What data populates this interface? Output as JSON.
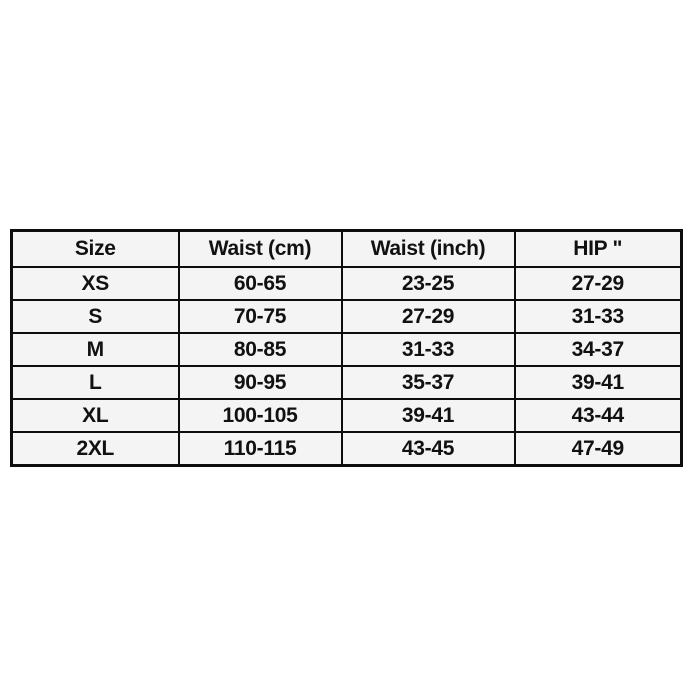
{
  "page": {
    "background": "#ffffff"
  },
  "size_chart": {
    "columns": [
      "Size",
      "Waist (cm)",
      "Waist (inch)",
      "HIP \""
    ],
    "rows": [
      [
        "XS",
        "60-65",
        "23-25",
        "27-29"
      ],
      [
        "S",
        "70-75",
        "27-29",
        "31-33"
      ],
      [
        "M",
        "80-85",
        "31-33",
        "34-37"
      ],
      [
        "L",
        "90-95",
        "35-37",
        "39-41"
      ],
      [
        "XL",
        "100-105",
        "39-41",
        "43-44"
      ],
      [
        "2XL",
        "110-115",
        "43-45",
        "47-49"
      ]
    ],
    "colors": {
      "border": "#0d0d0d",
      "cell_background": "#f4f4f4",
      "text": "#111111",
      "page_background": "#ffffff"
    }
  },
  "chart_data": {
    "type": "table",
    "title": "",
    "columns": [
      "Size",
      "Waist (cm)",
      "Waist (inch)",
      "HIP \""
    ],
    "rows": [
      [
        "XS",
        "60-65",
        "23-25",
        "27-29"
      ],
      [
        "S",
        "70-75",
        "27-29",
        "31-33"
      ],
      [
        "M",
        "80-85",
        "31-33",
        "34-37"
      ],
      [
        "L",
        "90-95",
        "35-37",
        "39-41"
      ],
      [
        "XL",
        "100-105",
        "39-41",
        "43-44"
      ],
      [
        "2XL",
        "110-115",
        "43-45",
        "47-49"
      ]
    ]
  }
}
